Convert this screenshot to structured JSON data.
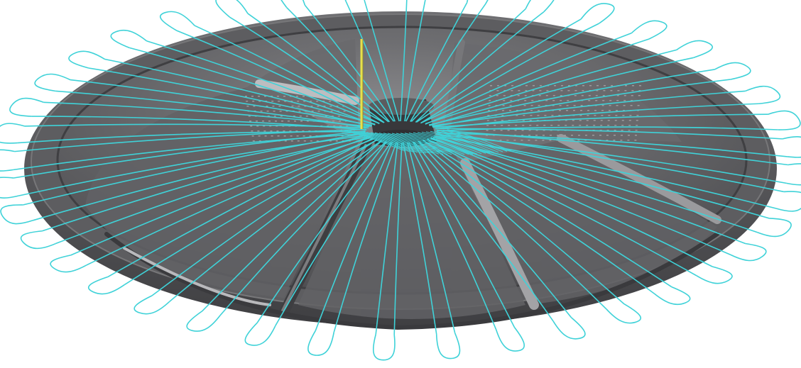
{
  "colors": {
    "background": "#ffffff",
    "part_surface_dark": "#4e4e51",
    "part_surface_mid": "#6b6b6e",
    "part_surface_light": "#a3a3a6",
    "rim": "#5a5a5d",
    "toolpath": "#3fd2d8",
    "tool_axis": "#e7e04a"
  },
  "scene": {
    "object": "dish-shaped-part-with-radial-ribs",
    "rib_count": 5,
    "toolpath_pattern": "radial-spokes-with-edge-loops",
    "toolpath_loop_count": 40
  }
}
